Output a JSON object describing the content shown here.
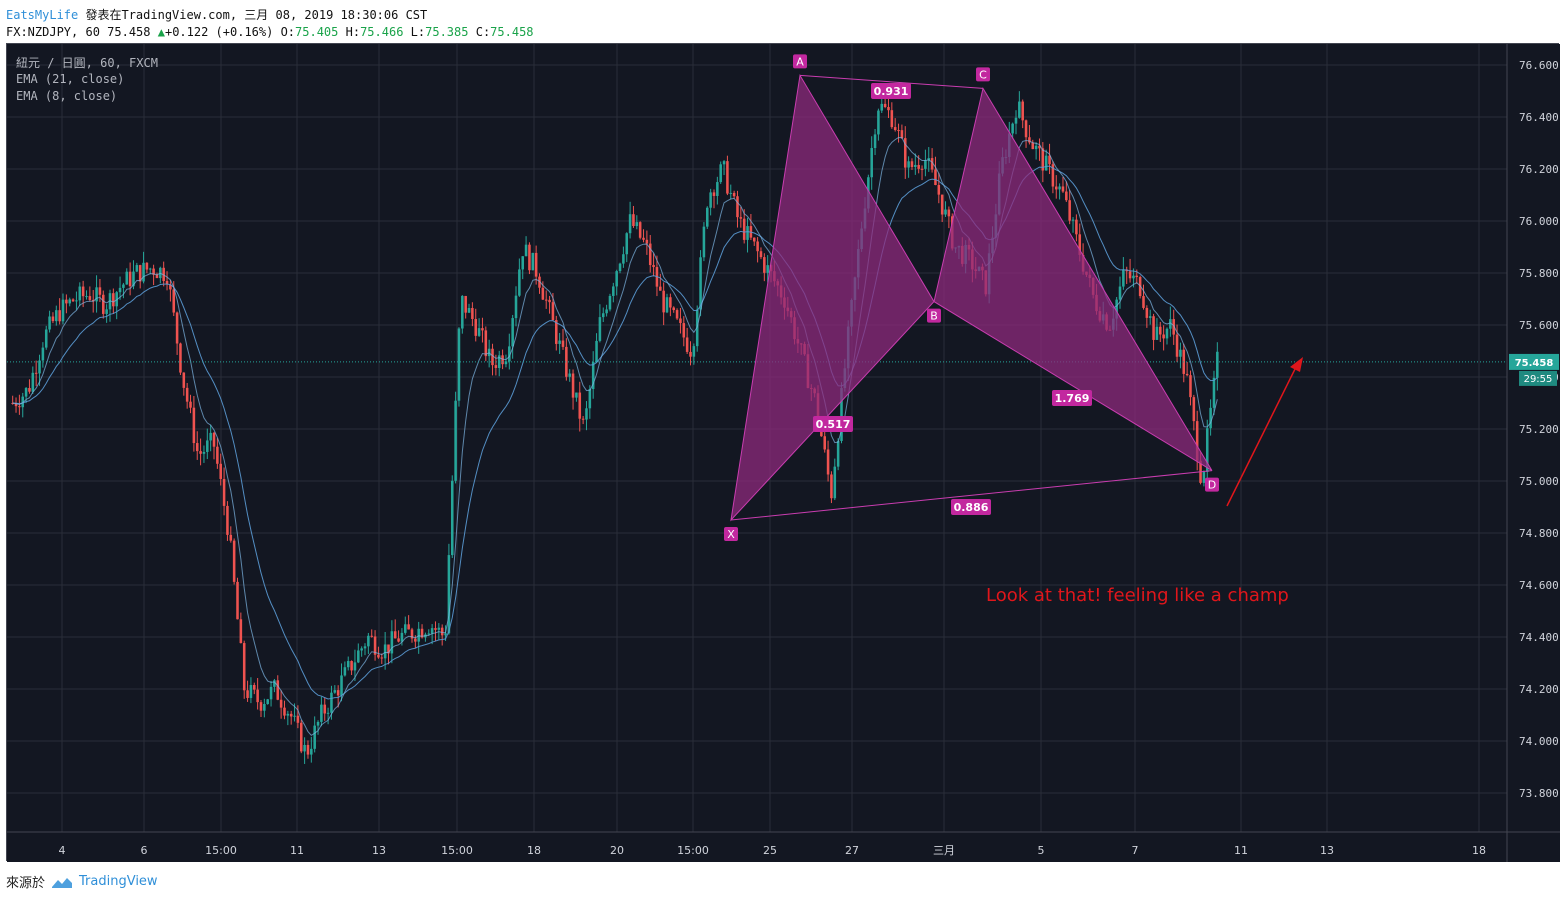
{
  "header": {
    "user": "EatsMyLife",
    "published": "發表在TradingView.com, 三月 08, 2019 18:30:06 CST",
    "symbol_line": "FX:NZDJPY, 60 75.458",
    "change": "+0.122 (+0.16%)",
    "o_label": "O:",
    "o_value": "75.405",
    "h_label": "H:",
    "h_value": "75.466",
    "l_label": "L:",
    "l_value": "75.385",
    "c_label": "C:",
    "c_value": "75.458"
  },
  "legend": {
    "title": "紐元 / 日圓, 60, FXCM",
    "ema1": "EMA (21, close)",
    "ema2": "EMA (8, close)"
  },
  "price_badge": {
    "value": "75.458",
    "timer": "29:55"
  },
  "annotation": {
    "text": "Look at that! feeling like a champ",
    "color": "#e0161b"
  },
  "footer": {
    "source_label": "來源於",
    "brand": "TradingView"
  },
  "colors": {
    "background": "#131722",
    "grid": "#2a2e39",
    "axis_text": "#d1d4dc",
    "up": "#26a69a",
    "down": "#ef5350",
    "pattern_fill": "#8e2a7c",
    "pattern_line": "#c93db0",
    "label_bg": "#c2289f",
    "ema_line": "#5b9bd5",
    "arrow": "#e0161b"
  },
  "chart_data": {
    "type": "candlestick",
    "symbol": "NZDJPY",
    "timeframe": "60",
    "ylim": [
      73.7,
      76.7
    ],
    "y_ticks": [
      "76.600",
      "76.400",
      "76.200",
      "76.000",
      "75.800",
      "75.600",
      "75.400",
      "75.200",
      "75.000",
      "74.800",
      "74.600",
      "74.400",
      "74.200",
      "74.000",
      "73.800"
    ],
    "x_ticks": [
      "4",
      "6",
      "15:00",
      "11",
      "13",
      "15:00",
      "18",
      "20",
      "15:00",
      "25",
      "27",
      "三月",
      "5",
      "7",
      "11",
      "13",
      "18"
    ],
    "series": [
      {
        "name": "NZDJPY close (approx.)",
        "values": [
          75.3,
          75.35,
          75.55,
          75.65,
          75.7,
          75.72,
          75.68,
          75.75,
          75.8,
          75.82,
          75.8,
          75.4,
          75.1,
          75.15,
          74.8,
          74.2,
          74.15,
          74.2,
          74.1,
          73.95,
          74.1,
          74.2,
          74.3,
          74.4,
          74.35,
          74.4,
          74.42,
          74.45,
          74.4,
          75.7,
          75.6,
          75.45,
          75.5,
          75.9,
          75.8,
          75.6,
          75.4,
          75.2,
          75.6,
          75.8,
          76.0,
          75.9,
          75.7,
          75.6,
          75.5,
          76.1,
          76.2,
          76.0,
          75.9,
          75.8,
          75.7,
          75.5,
          75.3,
          74.95,
          75.5,
          76.0,
          76.45,
          76.4,
          76.2,
          76.25,
          76.1,
          75.9,
          75.85,
          75.75,
          76.2,
          76.45,
          76.3,
          76.2,
          76.1,
          75.9,
          75.7,
          75.6,
          75.8,
          75.75,
          75.55,
          75.6,
          75.4,
          75.0,
          75.458
        ]
      },
      {
        "name": "EMA (21, close)",
        "values": []
      },
      {
        "name": "EMA (8, close)",
        "values": []
      }
    ],
    "last_price": 75.458,
    "harmonic_pattern": {
      "points": [
        {
          "label": "X",
          "price": 74.85
        },
        {
          "label": "A",
          "price": 76.56
        },
        {
          "label": "B",
          "price": 75.69
        },
        {
          "label": "C",
          "price": 76.51
        },
        {
          "label": "D",
          "price": 75.04
        }
      ],
      "ratios": [
        {
          "label": "0.517",
          "between": "XA-AB"
        },
        {
          "label": "0.931",
          "between": "AC"
        },
        {
          "label": "1.769",
          "between": "BC-CD"
        },
        {
          "label": "0.886",
          "between": "XD"
        }
      ]
    }
  }
}
